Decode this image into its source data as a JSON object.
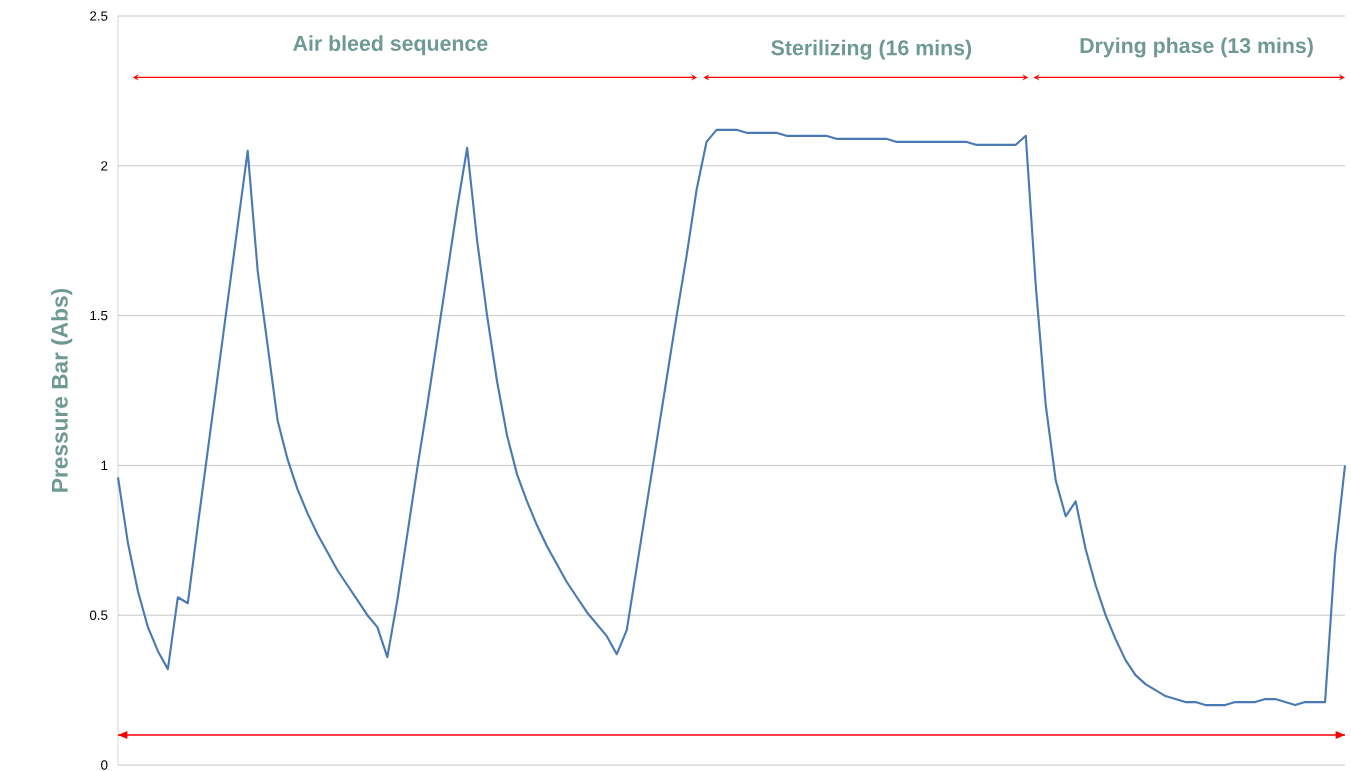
{
  "chart_data": {
    "type": "line",
    "ylabel": "Pressure Bar (Abs)",
    "color": "#4a7ab4",
    "categories": [
      null,
      null,
      null,
      null,
      null,
      null,
      null,
      null,
      null,
      null,
      null,
      null,
      null,
      null,
      null,
      null,
      null,
      null,
      null,
      null,
      null,
      null,
      null,
      null,
      null,
      null,
      null,
      null,
      null,
      null,
      null,
      null,
      null,
      null,
      null,
      null,
      null,
      null,
      null,
      null,
      null,
      null,
      null,
      null,
      null,
      null,
      null,
      null,
      null,
      null,
      null,
      null,
      null,
      null,
      null,
      null,
      null,
      null,
      null,
      null,
      null,
      null,
      null,
      null,
      null,
      null,
      null,
      null,
      null,
      null,
      null,
      null,
      null,
      null,
      null,
      null,
      null,
      null,
      null,
      null,
      null,
      null,
      null,
      null,
      null,
      null,
      null,
      null,
      null,
      null,
      null,
      null,
      null,
      null,
      null,
      null,
      null,
      null,
      null,
      null,
      null,
      null,
      null,
      null,
      null,
      null,
      null,
      null,
      null,
      null,
      null,
      null,
      null,
      null,
      null,
      null,
      null,
      null,
      null,
      null,
      null,
      null,
      null,
      null
    ],
    "values": [
      0.96,
      0.74,
      0.58,
      0.46,
      0.38,
      0.32,
      0.56,
      0.54,
      0.8,
      1.05,
      1.3,
      1.55,
      1.8,
      2.05,
      1.65,
      1.4,
      1.15,
      1.02,
      0.92,
      0.84,
      0.77,
      0.71,
      0.65,
      0.6,
      0.55,
      0.5,
      0.46,
      0.36,
      0.55,
      0.77,
      0.99,
      1.2,
      1.42,
      1.64,
      1.86,
      2.06,
      1.75,
      1.5,
      1.28,
      1.1,
      0.97,
      0.88,
      0.8,
      0.73,
      0.67,
      0.61,
      0.56,
      0.51,
      0.47,
      0.43,
      0.37,
      0.45,
      0.66,
      0.87,
      1.08,
      1.29,
      1.5,
      1.7,
      1.92,
      2.08,
      2.12,
      2.12,
      2.12,
      2.11,
      2.11,
      2.11,
      2.11,
      2.1,
      2.1,
      2.1,
      2.1,
      2.1,
      2.09,
      2.09,
      2.09,
      2.09,
      2.09,
      2.09,
      2.08,
      2.08,
      2.08,
      2.08,
      2.08,
      2.08,
      2.08,
      2.08,
      2.07,
      2.07,
      2.07,
      2.07,
      2.07,
      2.1,
      1.6,
      1.2,
      0.95,
      0.83,
      0.88,
      0.72,
      0.6,
      0.5,
      0.42,
      0.35,
      0.3,
      0.27,
      0.25,
      0.23,
      0.22,
      0.21,
      0.21,
      0.2,
      0.2,
      0.2,
      0.21,
      0.21,
      0.21,
      0.22,
      0.22,
      0.21,
      0.2,
      0.21,
      0.21,
      0.21,
      0.7,
      1.0
    ],
    "ylim": [
      0,
      2.5
    ],
    "yticks": [
      0,
      0.5,
      1,
      1.5,
      2,
      2.5
    ],
    "grid": "y",
    "tick_labels": "y",
    "ref_lines": [
      {
        "axis": "y",
        "value": 0.1,
        "color": "#ff0000"
      }
    ],
    "annotations": [
      "Air bleed sequence",
      "Sterilizing (16 mins)",
      "Drying phase (13 mins)"
    ]
  }
}
